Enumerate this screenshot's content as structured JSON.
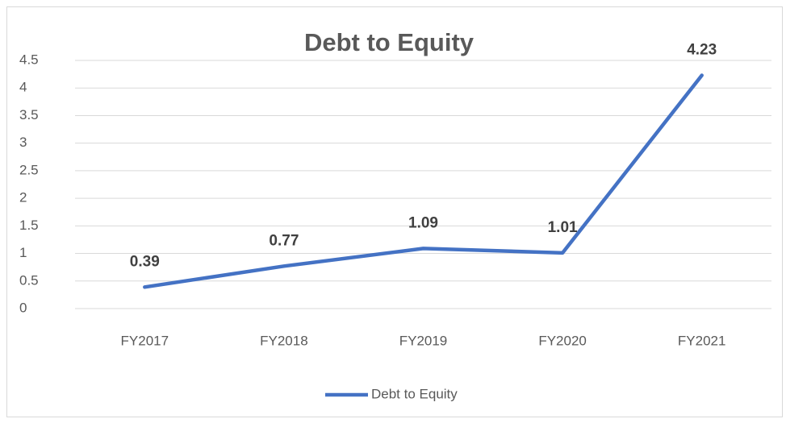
{
  "chart_data": {
    "type": "line",
    "title": "Debt to Equity",
    "categories": [
      "FY2017",
      "FY2018",
      "FY2019",
      "FY2020",
      "FY2021"
    ],
    "series": [
      {
        "name": "Debt to Equity",
        "color": "#4472c4",
        "values": [
          0.39,
          0.77,
          1.09,
          1.01,
          4.23
        ]
      }
    ],
    "ylim": [
      0,
      4.5
    ],
    "yticks": [
      0,
      0.5,
      1,
      1.5,
      2,
      2.5,
      3,
      3.5,
      4,
      4.5
    ],
    "grid": true,
    "legend": "bottom"
  }
}
